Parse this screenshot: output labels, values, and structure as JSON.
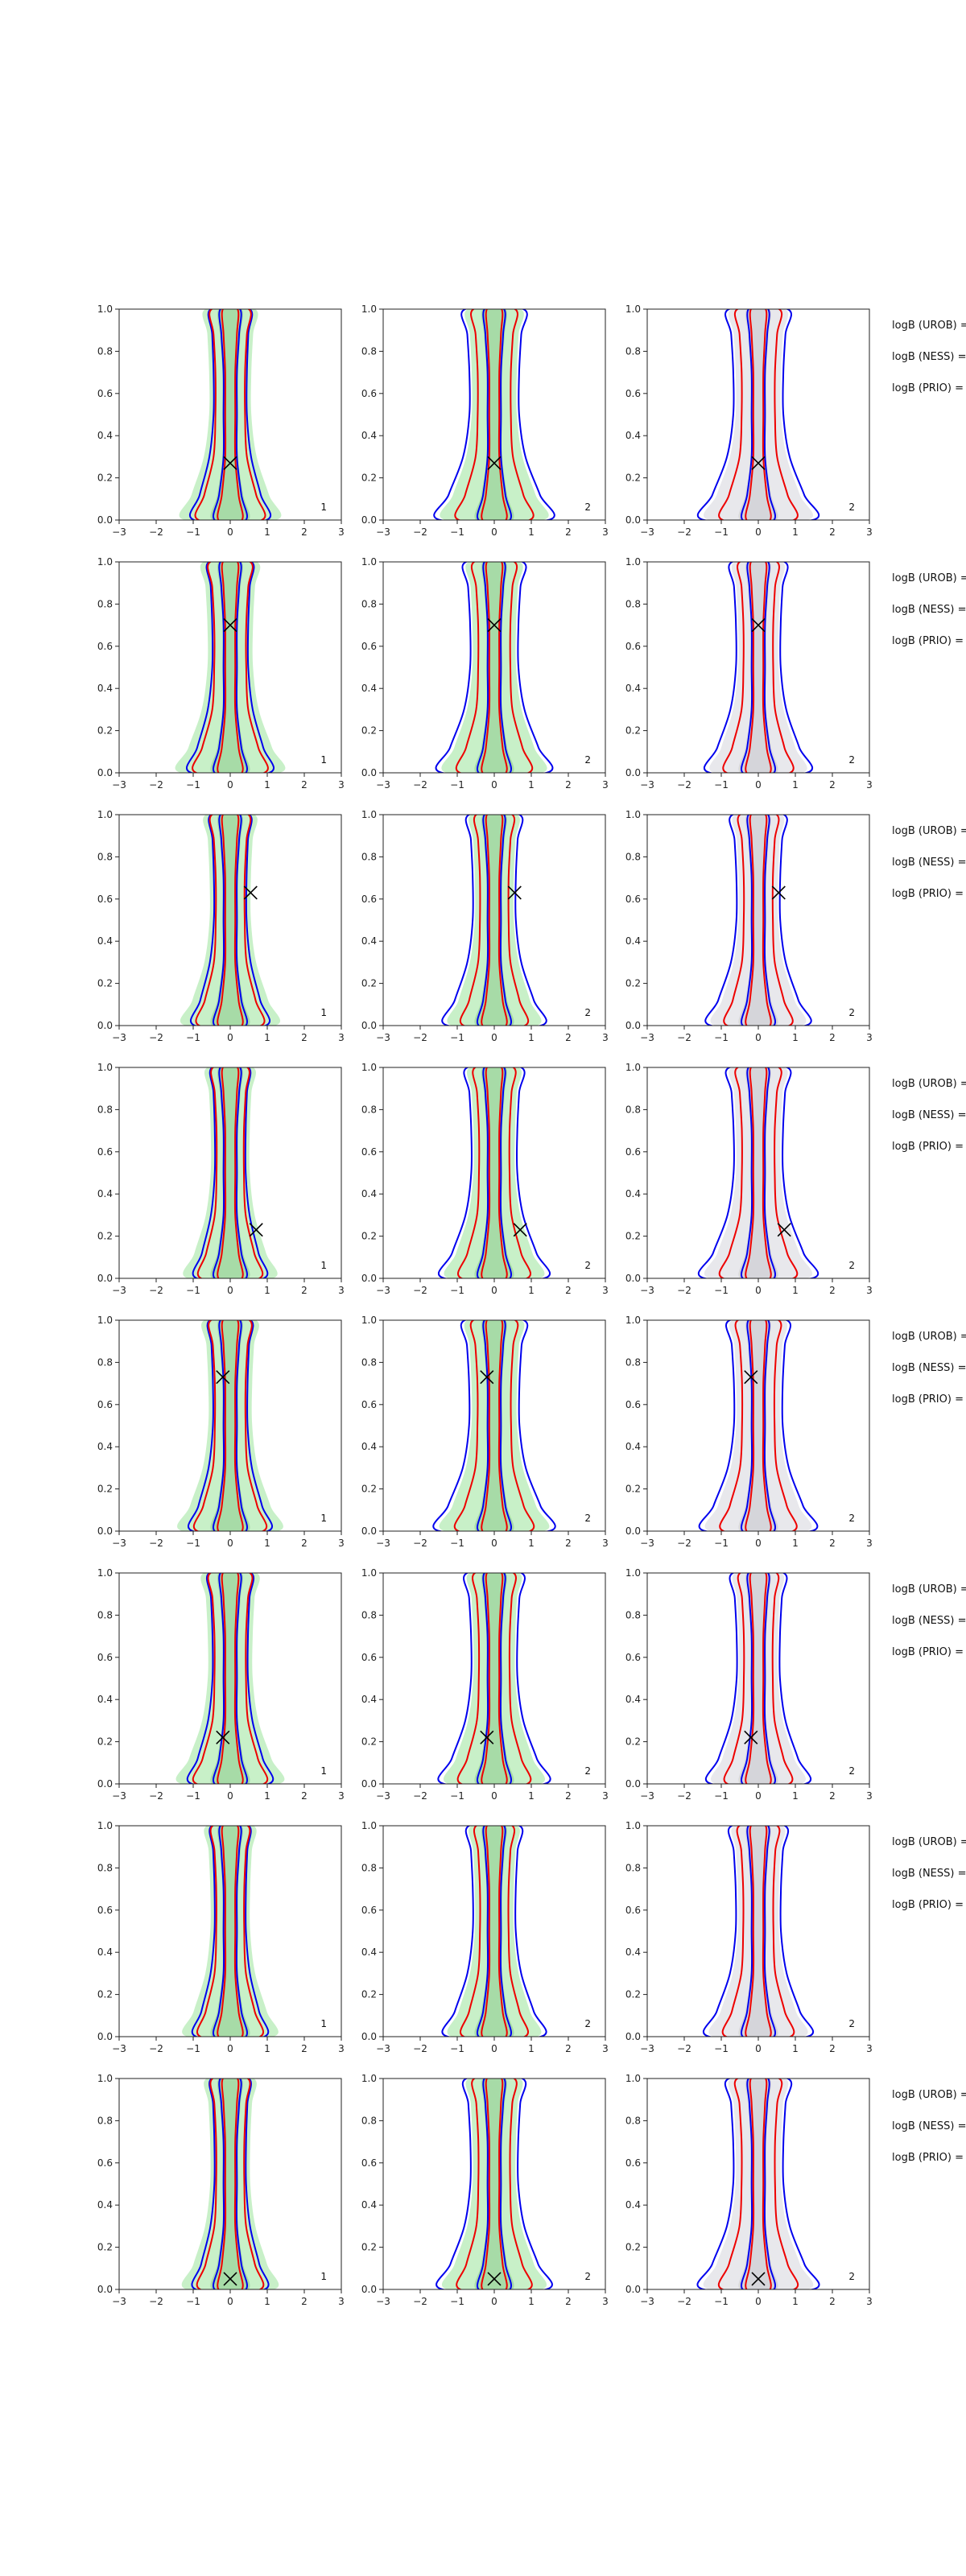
{
  "chart_data": {
    "type": "contour-grid",
    "title": "",
    "xlim": [
      -3,
      3
    ],
    "ylim": [
      0.0,
      1.0
    ],
    "xticks": [
      "−3",
      "−2",
      "−1",
      "0",
      "1",
      "2",
      "3"
    ],
    "yticks": [
      "0.0",
      "0.2",
      "0.4",
      "0.6",
      "0.8",
      "1.0"
    ],
    "columns": [
      {
        "fill": "green",
        "corner_label": "1"
      },
      {
        "fill": "green",
        "corner_label": "2"
      },
      {
        "fill": "gray",
        "corner_label": "2"
      }
    ],
    "rows": [
      {
        "marker": [
          0.0,
          0.27
        ],
        "side_labels": [
          "logB (UROB) =",
          "logB (NESS) =",
          "logB (PRIO) ="
        ]
      },
      {
        "marker": [
          0.0,
          0.7
        ],
        "side_labels": [
          "logB (UROB) =",
          "logB (NESS) =",
          "logB (PRIO) ="
        ]
      },
      {
        "marker": [
          0.55,
          0.63
        ],
        "side_labels": [
          "logB (UROB) =",
          "logB (NESS) =",
          "logB (PRIO) ="
        ]
      },
      {
        "marker": [
          0.7,
          0.23
        ],
        "side_labels": [
          "logB (UROB) =",
          "logB (NESS) =",
          "logB (PRIO) ="
        ]
      },
      {
        "marker": [
          -0.2,
          0.73
        ],
        "side_labels": [
          "logB (UROB) =",
          "logB (NESS) =",
          "logB (PRIO) ="
        ]
      },
      {
        "marker": [
          -0.2,
          0.22
        ],
        "side_labels": [
          "logB (UROB) =",
          "logB (NESS) =",
          "logB (PRIO) ="
        ]
      },
      {
        "marker": null,
        "side_labels": [
          "logB (UROB) =",
          "logB (NESS) =",
          "logB (PRIO) ="
        ]
      },
      {
        "marker": [
          0.0,
          0.05
        ],
        "side_labels": [
          "logB (UROB) =",
          "logB (NESS) =",
          "logB (PRIO) ="
        ]
      }
    ],
    "colors": {
      "blue_contour": "#0000ee",
      "red_contour": "#ee0000",
      "green_fill": "#c8f0c8",
      "green_fill_dark": "#9fd69f",
      "gray_fill": "#e8e8ec",
      "gray_fill_dark": "#cfcfd6",
      "axis": "#222222"
    }
  }
}
